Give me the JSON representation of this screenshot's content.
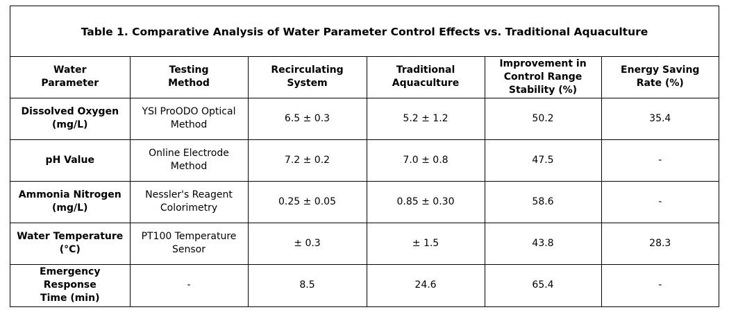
{
  "table": {
    "title": "Table 1. Comparative Analysis of Water Parameter Control Effects vs. Traditional Aquaculture",
    "headers": [
      [
        "Water",
        "Parameter"
      ],
      [
        "Testing",
        "Method"
      ],
      [
        "Recirculating",
        "System"
      ],
      [
        "Traditional",
        "Aquaculture"
      ],
      [
        "Improvement in",
        "Control Range",
        "Stability (%)"
      ],
      [
        "Energy Saving",
        "Rate (%)"
      ]
    ],
    "rows": [
      {
        "parameter": [
          "Dissolved Oxygen",
          "(mg/L)"
        ],
        "method": [
          "YSI ProODO Optical",
          "Method"
        ],
        "recirculating": "6.5 ± 0.3",
        "traditional": "5.2 ± 1.2",
        "improvement": "50.2",
        "energy_saving": "35.4"
      },
      {
        "parameter": [
          "pH Value"
        ],
        "method": [
          "Online Electrode",
          "Method"
        ],
        "recirculating": "7.2 ± 0.2",
        "traditional": "7.0 ± 0.8",
        "improvement": "47.5",
        "energy_saving": "-"
      },
      {
        "parameter": [
          "Ammonia Nitrogen",
          "(mg/L)"
        ],
        "method": [
          "Nessler's Reagent",
          "Colorimetry"
        ],
        "recirculating": "0.25 ± 0.05",
        "traditional": "0.85 ± 0.30",
        "improvement": "58.6",
        "energy_saving": "-"
      },
      {
        "parameter": [
          "Water Temperature",
          "(°C)"
        ],
        "method": [
          "PT100 Temperature",
          "Sensor"
        ],
        "recirculating": "± 0.3",
        "traditional": "± 1.5",
        "improvement": "43.8",
        "energy_saving": "28.3"
      },
      {
        "parameter": [
          "Emergency",
          "Response",
          "Time (min)"
        ],
        "method": [
          "-"
        ],
        "recirculating": "8.5",
        "traditional": "24.6",
        "improvement": "65.4",
        "energy_saving": "-"
      }
    ]
  }
}
